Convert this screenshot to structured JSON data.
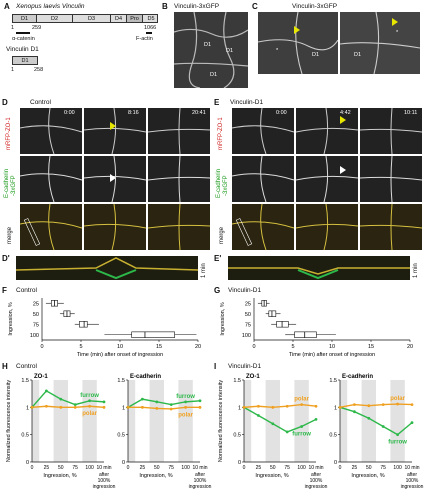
{
  "panels": {
    "A": {
      "letter": "A",
      "title": "Xenopus laevis Vinculin",
      "domains": [
        "D1",
        "D2",
        "D3",
        "D4",
        "Pro",
        "D5"
      ],
      "start": "1",
      "mid": "259",
      "end": "1066",
      "alpha": "α-catenin",
      "factin": "F-actin",
      "d1_title": "Vinculin D1",
      "d1_name": "D1",
      "d1_start": "1",
      "d1_end": "258"
    },
    "B": {
      "letter": "B",
      "title": "Vinculin-3xGFP",
      "d1": "D1"
    },
    "C": {
      "letter": "C",
      "title": "Vinculin-3xGFP",
      "d1": "D1",
      "star": "*"
    },
    "D": {
      "letter": "D",
      "title": "Control",
      "times": [
        "0:00",
        "8:16",
        "20:41"
      ],
      "row1": "mRFP-ZO-1",
      "row2a": "E-cadherin",
      "row2b": "-3xGFP",
      "row3": "merge"
    },
    "D2": {
      "letter": "D'",
      "scale": "1 min"
    },
    "E": {
      "letter": "E",
      "title": "Vinculin-D1",
      "times": [
        "0:00",
        "4:42",
        "10:11"
      ],
      "row1": "mRFP-ZO-1",
      "row2a": "E-cadherin",
      "row2b": "-3xGFP",
      "row3": "merge"
    },
    "E2": {
      "letter": "E'",
      "scale": "1 min"
    },
    "F": {
      "letter": "F",
      "title": "Control"
    },
    "G": {
      "letter": "G",
      "title": "Vinculin-D1"
    },
    "H": {
      "letter": "H",
      "title": "Control",
      "left": "ZO-1",
      "right": "E-cadherin",
      "furrow": "furrow",
      "polar": "polar"
    },
    "I": {
      "letter": "I",
      "title": "Vinculin-D1",
      "left": "ZO-1",
      "right": "E-cadherin",
      "furrow": "furrow",
      "polar": "polar"
    }
  },
  "chart_data": [
    {
      "id": "F",
      "type": "box",
      "title": "Control",
      "xlabel": "Time (min) after onset of ingression",
      "ylabel": "Ingression, %",
      "categories": [
        "25",
        "50",
        "75",
        "100"
      ],
      "xlim": [
        0,
        20
      ],
      "xticks": [
        "0",
        "5",
        "10",
        "15",
        "20"
      ],
      "boxes": [
        {
          "q1": 1.2,
          "median": 1.6,
          "q3": 2.0,
          "min": 0.5,
          "max": 2.8
        },
        {
          "q1": 2.8,
          "median": 3.2,
          "q3": 3.6,
          "min": 2.3,
          "max": 4.2
        },
        {
          "q1": 4.8,
          "median": 5.4,
          "q3": 5.8,
          "min": 4.2,
          "max": 7.3
        },
        {
          "q1": 11.5,
          "median": 13.2,
          "q3": 17.0,
          "min": 8.0,
          "max": 19.8
        }
      ]
    },
    {
      "id": "G",
      "type": "box",
      "title": "Vinculin-D1",
      "xlabel": "Time (min) after onset of ingression",
      "ylabel": "Ingression, %",
      "categories": [
        "25",
        "50",
        "75",
        "100"
      ],
      "xlim": [
        0,
        20
      ],
      "xticks": [
        "0",
        "5",
        "10",
        "15",
        "20"
      ],
      "boxes": [
        {
          "q1": 1.0,
          "median": 1.3,
          "q3": 1.6,
          "min": 0.5,
          "max": 2.0
        },
        {
          "q1": 1.9,
          "median": 2.3,
          "q3": 2.8,
          "min": 1.5,
          "max": 3.4
        },
        {
          "q1": 2.9,
          "median": 3.6,
          "q3": 4.4,
          "min": 2.2,
          "max": 5.4
        },
        {
          "q1": 5.2,
          "median": 6.5,
          "q3": 8.0,
          "min": 4.0,
          "max": 10.5
        }
      ]
    },
    {
      "id": "H",
      "type": "line",
      "title": "Control",
      "ylabel": "Normalized fluorescence intensity",
      "ylim": [
        0,
        1.5
      ],
      "yticks": [
        "0",
        "0.5",
        "1",
        "1.5"
      ],
      "xticks": [
        "0",
        "25",
        "50",
        "75",
        "100",
        "10 min"
      ],
      "xlabel": "Ingression, %",
      "xnote": [
        "after",
        "100%",
        "ingression"
      ],
      "panels": [
        {
          "name": "ZO-1",
          "x": [
            0,
            25,
            50,
            75,
            100,
            125
          ],
          "series": [
            {
              "name": "furrow",
              "color": "#2db84a",
              "values": [
                1.0,
                1.3,
                1.15,
                1.05,
                1.12,
                1.1
              ]
            },
            {
              "name": "polar",
              "color": "#f0a020",
              "values": [
                1.0,
                1.02,
                1.0,
                1.0,
                1.02,
                1.0
              ]
            }
          ]
        },
        {
          "name": "E-cadherin",
          "x": [
            0,
            25,
            50,
            75,
            100,
            125
          ],
          "series": [
            {
              "name": "furrow",
              "color": "#2db84a",
              "values": [
                1.0,
                1.15,
                1.1,
                1.05,
                1.1,
                1.12
              ]
            },
            {
              "name": "polar",
              "color": "#f0a020",
              "values": [
                1.0,
                1.0,
                0.98,
                0.97,
                1.0,
                1.0
              ]
            }
          ]
        }
      ]
    },
    {
      "id": "I",
      "type": "line",
      "title": "Vinculin-D1",
      "ylabel": "Normalized fluorescence intensity",
      "ylim": [
        0,
        1.5
      ],
      "yticks": [
        "0",
        "0.5",
        "1",
        "1.5"
      ],
      "xticks": [
        "0",
        "25",
        "50",
        "75",
        "100",
        "10 min"
      ],
      "xlabel": "Ingression, %",
      "xnote": [
        "after",
        "100%",
        "ingression"
      ],
      "panels": [
        {
          "name": "ZO-1",
          "x": [
            0,
            25,
            50,
            75,
            100,
            125
          ],
          "series": [
            {
              "name": "furrow",
              "color": "#2db84a",
              "values": [
                1.0,
                0.85,
                0.7,
                0.55,
                0.65,
                0.78
              ]
            },
            {
              "name": "polar",
              "color": "#f0a020",
              "values": [
                1.0,
                1.02,
                1.0,
                1.02,
                1.05,
                1.02
              ]
            }
          ]
        },
        {
          "name": "E-cadherin",
          "x": [
            0,
            25,
            50,
            75,
            100,
            125
          ],
          "series": [
            {
              "name": "furrow",
              "color": "#2db84a",
              "values": [
                1.0,
                0.92,
                0.8,
                0.65,
                0.5,
                0.72
              ]
            },
            {
              "name": "polar",
              "color": "#f0a020",
              "values": [
                1.0,
                1.05,
                1.03,
                1.05,
                1.06,
                1.05
              ]
            }
          ]
        }
      ]
    }
  ]
}
